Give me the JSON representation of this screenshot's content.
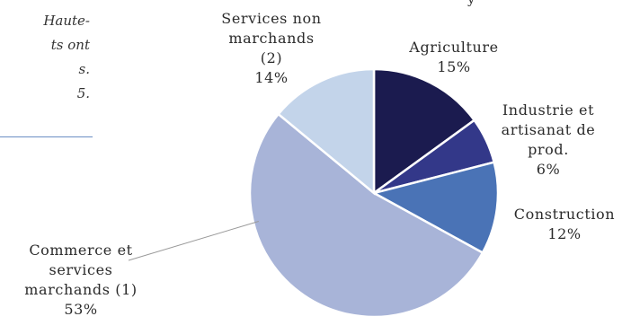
{
  "side_text": {
    "lines": [
      "Haute-",
      "ts ont",
      "s.",
      "5."
    ]
  },
  "top_fragment": "y",
  "chart_data": {
    "type": "pie",
    "start_angle_deg": 0,
    "direction": "clockwise",
    "slices": [
      {
        "label_lines": [
          "Agriculture"
        ],
        "value": 15,
        "value_text": "15%",
        "color": "#1b1b4f"
      },
      {
        "label_lines": [
          "Industrie et",
          "artisanat de",
          "prod."
        ],
        "value": 6,
        "value_text": "6%",
        "color": "#333889"
      },
      {
        "label_lines": [
          "Construction"
        ],
        "value": 12,
        "value_text": "12%",
        "color": "#4a73b6"
      },
      {
        "label_lines": [
          "Commerce et",
          "services",
          "marchands (1)"
        ],
        "value": 53,
        "value_text": "53%",
        "color": "#a8b4d8"
      },
      {
        "label_lines": [
          "Services non",
          "marchands",
          "(2)"
        ],
        "value": 14,
        "value_text": "14%",
        "color": "#c3d4ea"
      }
    ]
  }
}
